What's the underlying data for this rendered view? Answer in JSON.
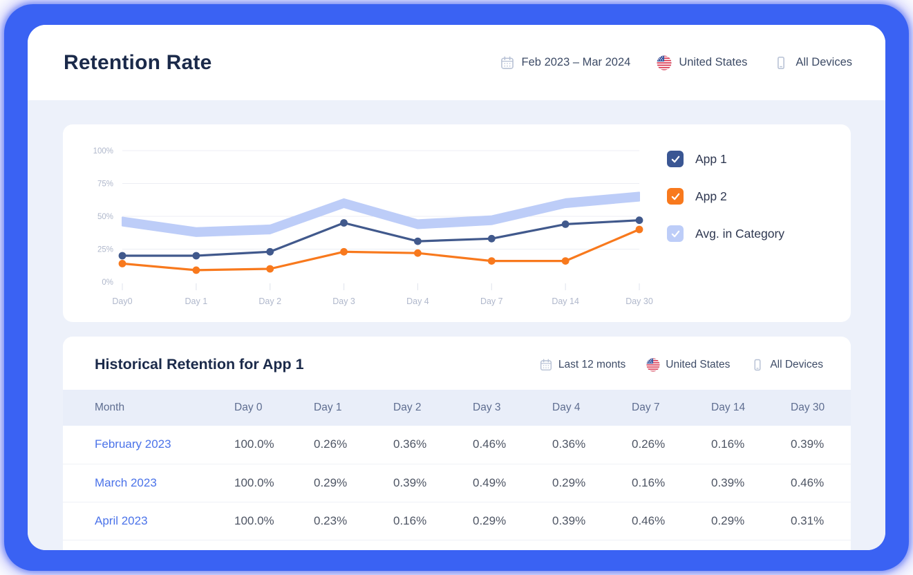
{
  "header": {
    "title": "Retention Rate",
    "filters": [
      {
        "icon": "calendar-icon",
        "label": "Feb 2023 – Mar 2024"
      },
      {
        "icon": "us-flag-icon",
        "label": "United States"
      },
      {
        "icon": "device-icon",
        "label": "All Devices"
      }
    ]
  },
  "chart_card": {
    "legend": [
      {
        "label": "App 1",
        "color": "#3A5693",
        "checked": true
      },
      {
        "label": "App 2",
        "color": "#F8791D",
        "checked": true
      },
      {
        "label": "Avg. in Category",
        "color": "#BDCDF8",
        "checked": true
      }
    ]
  },
  "chart_data": {
    "type": "line",
    "x": [
      "Day0",
      "Day 1",
      "Day 2",
      "Day 3",
      "Day 4",
      "Day 7",
      "Day 14",
      "Day 30"
    ],
    "ylim": [
      0,
      100
    ],
    "yticks": [
      0,
      25,
      50,
      75,
      100
    ],
    "ytick_suffix": "%",
    "grid": true,
    "legend_position": "right",
    "series": [
      {
        "name": "Avg. in Category",
        "style": "band",
        "color": "#BDCDF8",
        "band_half": 3.2,
        "values": [
          46,
          38,
          40,
          60,
          44,
          47,
          60,
          65
        ]
      },
      {
        "name": "App 1",
        "style": "line",
        "color": "#41598C",
        "values": [
          20,
          20,
          23,
          45,
          31,
          33,
          44,
          47
        ]
      },
      {
        "name": "App 2",
        "style": "line",
        "color": "#F8791D",
        "values": [
          14,
          9,
          10,
          23,
          22,
          16,
          16,
          40
        ]
      }
    ]
  },
  "table": {
    "title": "Historical Retention for App 1",
    "filters": [
      {
        "icon": "calendar-icon",
        "label": "Last 12 monts"
      },
      {
        "icon": "us-flag-icon",
        "label": "United States"
      },
      {
        "icon": "device-icon",
        "label": "All Devices"
      }
    ],
    "columns": [
      "Month",
      "Day 0",
      "Day 1",
      "Day 2",
      "Day 3",
      "Day 4",
      "Day 7",
      "Day 14",
      "Day 30"
    ],
    "rows": [
      {
        "month": "February 2023",
        "values": [
          "100.0%",
          "0.26%",
          "0.36%",
          "0.46%",
          "0.36%",
          "0.26%",
          "0.16%",
          "0.39%"
        ]
      },
      {
        "month": "March 2023",
        "values": [
          "100.0%",
          "0.29%",
          "0.39%",
          "0.49%",
          "0.29%",
          "0.16%",
          "0.39%",
          "0.46%"
        ]
      },
      {
        "month": "April 2023",
        "values": [
          "100.0%",
          "0.23%",
          "0.16%",
          "0.29%",
          "0.39%",
          "0.46%",
          "0.29%",
          "0.31%"
        ]
      }
    ]
  },
  "colors": {
    "frame_blue": "#3A62F3",
    "body_bg": "#EDF1FA",
    "title_text": "#1B2A4A",
    "filter_text": "#3D4B66",
    "muted_icon": "#B6C0D4",
    "gridline": "#ECEEF4",
    "axis_label": "#AFB7CB",
    "tick": "#E4E7EF",
    "table_header_bg": "#E9EEF9",
    "table_header_text": "#5E6D90",
    "cell_text": "#4E5564",
    "month_link": "#4B73E9"
  }
}
